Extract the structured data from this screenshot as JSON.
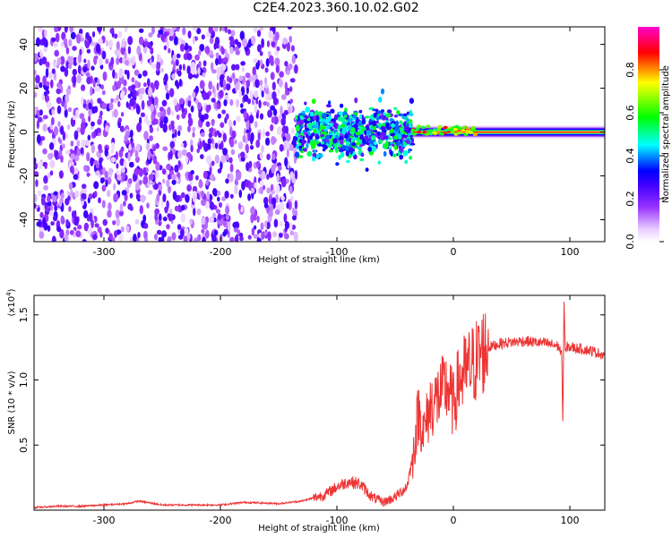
{
  "title": "C2E4.2023.360.10.02.G02",
  "chart_data": [
    {
      "type": "heatmap",
      "xlabel": "Height of straight line (km)",
      "ylabel": "Frequency (Hz)",
      "xlim": [
        -360,
        130
      ],
      "ylim": [
        -50,
        48
      ],
      "x_ticks": [
        -300,
        -200,
        -100,
        0,
        100
      ],
      "y_ticks": [
        -40,
        -20,
        0,
        20,
        40
      ],
      "colorbar": {
        "label": "Normalized spectral amplitude",
        "range": [
          0,
          1
        ],
        "ticks": [
          0.0,
          0.2,
          0.4,
          0.6,
          0.8
        ],
        "colormap": [
          "#ffffff",
          "#e8ccff",
          "#9933ff",
          "#4400ff",
          "#0000ff",
          "#00ffff",
          "#00ff00",
          "#ffff00",
          "#ff0000"
        ]
      },
      "features": {
        "noise_region_x": [
          -360,
          -135
        ],
        "transition_region_x": [
          -135,
          -35
        ],
        "carrier_line_x": [
          -35,
          130
        ],
        "carrier_frequency": 0
      }
    },
    {
      "type": "line",
      "xlabel": "Height of straight line (km)",
      "ylabel": "SNR (10 * v/v)",
      "exponent_label": "(x10",
      "exponent_power": "4",
      "exponent_close": ")",
      "xlim": [
        -360,
        130
      ],
      "ylim": [
        0,
        1.65
      ],
      "x_ticks": [
        -300,
        -200,
        -100,
        0,
        100
      ],
      "y_ticks": [
        0.5,
        1.0,
        1.5
      ],
      "color": "#ee3333",
      "series": [
        {
          "x": [
            -360,
            -340,
            -320,
            -300,
            -280,
            -270,
            -250,
            -230,
            -200,
            -180,
            -150,
            -130,
            -110,
            -100,
            -90,
            -80,
            -70,
            -60,
            -50,
            -40,
            -35,
            -30,
            -25,
            -20,
            -15,
            -10,
            -5,
            0,
            5,
            10,
            15,
            20,
            25,
            30,
            40,
            60,
            80,
            90,
            93,
            94,
            95,
            96,
            98,
            100,
            110,
            120,
            130
          ],
          "y": [
            0.02,
            0.03,
            0.03,
            0.04,
            0.05,
            0.07,
            0.04,
            0.04,
            0.04,
            0.06,
            0.05,
            0.07,
            0.12,
            0.18,
            0.22,
            0.2,
            0.1,
            0.06,
            0.1,
            0.18,
            0.4,
            0.75,
            0.6,
            0.8,
            0.85,
            0.9,
            0.95,
            0.8,
            1.0,
            1.05,
            1.1,
            1.15,
            1.22,
            1.25,
            1.28,
            1.3,
            1.28,
            1.26,
            1.2,
            0.65,
            1.62,
            1.2,
            1.26,
            1.25,
            1.24,
            1.22,
            1.19
          ]
        }
      ]
    }
  ]
}
